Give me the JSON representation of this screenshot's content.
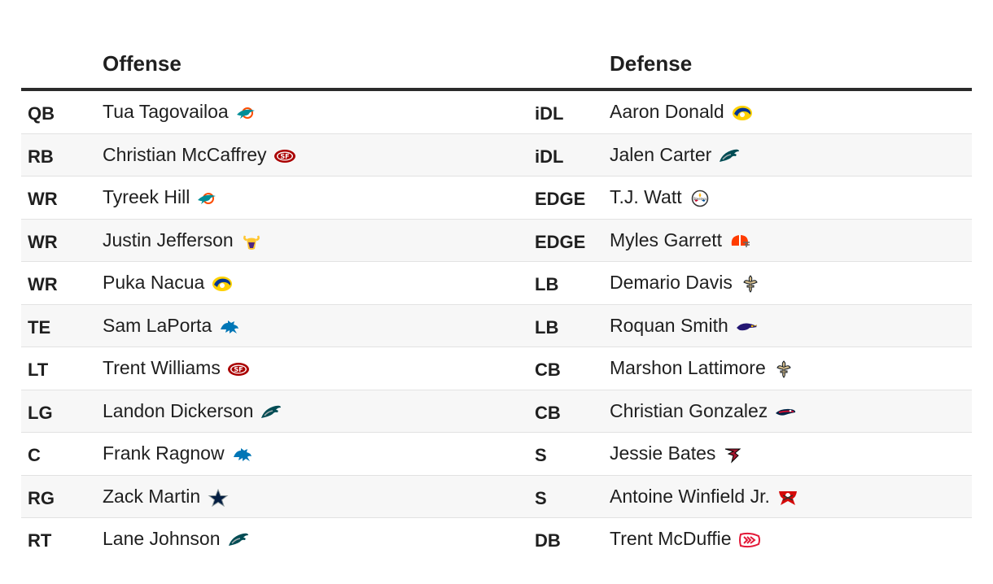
{
  "headers": {
    "offense": "Offense",
    "defense": "Defense"
  },
  "rows": [
    {
      "off_pos": "QB",
      "off_name": "Tua Tagovailoa",
      "off_team": "dolphins-logo-icon",
      "def_pos": "iDL",
      "def_name": "Aaron Donald",
      "def_team": "rams-logo-icon"
    },
    {
      "off_pos": "RB",
      "off_name": "Christian McCaffrey",
      "off_team": "49ers-logo-icon",
      "def_pos": "iDL",
      "def_name": "Jalen Carter",
      "def_team": "eagles-logo-icon"
    },
    {
      "off_pos": "WR",
      "off_name": "Tyreek Hill",
      "off_team": "dolphins-logo-icon",
      "def_pos": "EDGE",
      "def_name": "T.J. Watt",
      "def_team": "steelers-logo-icon"
    },
    {
      "off_pos": "WR",
      "off_name": "Justin Jefferson",
      "off_team": "vikings-logo-icon",
      "def_pos": "EDGE",
      "def_name": "Myles Garrett",
      "def_team": "browns-logo-icon"
    },
    {
      "off_pos": "WR",
      "off_name": "Puka Nacua",
      "off_team": "rams-logo-icon",
      "def_pos": "LB",
      "def_name": "Demario Davis",
      "def_team": "saints-logo-icon"
    },
    {
      "off_pos": "TE",
      "off_name": "Sam LaPorta",
      "off_team": "lions-logo-icon",
      "def_pos": "LB",
      "def_name": "Roquan Smith",
      "def_team": "ravens-logo-icon"
    },
    {
      "off_pos": "LT",
      "off_name": "Trent Williams",
      "off_team": "49ers-logo-icon",
      "def_pos": "CB",
      "def_name": "Marshon Lattimore",
      "def_team": "saints-logo-icon"
    },
    {
      "off_pos": "LG",
      "off_name": "Landon Dickerson",
      "off_team": "eagles-logo-icon",
      "def_pos": "CB",
      "def_name": "Christian Gonzalez",
      "def_team": "patriots-logo-icon"
    },
    {
      "off_pos": "C",
      "off_name": "Frank Ragnow",
      "off_team": "lions-logo-icon",
      "def_pos": "S",
      "def_name": "Jessie Bates",
      "def_team": "falcons-logo-icon"
    },
    {
      "off_pos": "RG",
      "off_name": "Zack Martin",
      "off_team": "cowboys-logo-icon",
      "def_pos": "S",
      "def_name": "Antoine Winfield Jr.",
      "def_team": "buccaneers-logo-icon"
    },
    {
      "off_pos": "RT",
      "off_name": "Lane Johnson",
      "off_team": "eagles-logo-icon",
      "def_pos": "DB",
      "def_name": "Trent McDuffie",
      "def_team": "chiefs-logo-icon"
    }
  ],
  "colors": {
    "dolphins-logo-icon": "#008E97",
    "rams-logo-icon": "#003594",
    "49ers-logo-icon": "#AA0000",
    "eagles-logo-icon": "#004C54",
    "steelers-logo-icon": "#FFB612",
    "vikings-logo-icon": "#4F2683",
    "browns-logo-icon": "#FF3C00",
    "saints-logo-icon": "#D3BC8D",
    "lions-logo-icon": "#0076B6",
    "ravens-logo-icon": "#241773",
    "patriots-logo-icon": "#002244",
    "falcons-logo-icon": "#A71930",
    "cowboys-logo-icon": "#041E42",
    "buccaneers-logo-icon": "#D50A0A",
    "chiefs-logo-icon": "#E31837"
  }
}
